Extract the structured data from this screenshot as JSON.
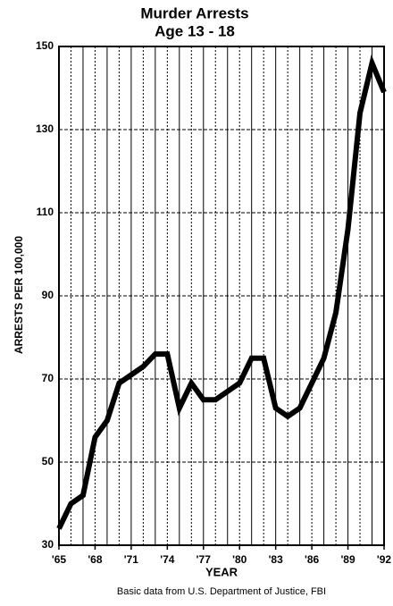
{
  "chart_data": {
    "type": "line",
    "title": "Murder Arrests",
    "subtitle": "Age 13 - 18",
    "x_label": "YEAR",
    "y_label": "ARRESTS PER 100,000",
    "source": "Basic data from U.S. Department of Justice, FBI",
    "x": [
      65,
      66,
      67,
      68,
      69,
      70,
      71,
      72,
      73,
      74,
      75,
      76,
      77,
      78,
      79,
      80,
      81,
      82,
      83,
      84,
      85,
      86,
      87,
      88,
      89,
      90,
      91,
      92
    ],
    "values": [
      34,
      40,
      42,
      56,
      60,
      69,
      71,
      73,
      76,
      76,
      63,
      69,
      65,
      65,
      67,
      69,
      75,
      75,
      63,
      61,
      63,
      69,
      75,
      86,
      106,
      134,
      146,
      139
    ],
    "color": "#000000",
    "xlim": [
      65,
      92
    ],
    "xticks": [
      {
        "value": 65,
        "label": "'65"
      },
      {
        "value": 68,
        "label": "'68"
      },
      {
        "value": 71,
        "label": "'71"
      },
      {
        "value": 74,
        "label": "'74"
      },
      {
        "value": 77,
        "label": "'77"
      },
      {
        "value": 80,
        "label": "'80"
      },
      {
        "value": 83,
        "label": "'83"
      },
      {
        "value": 86,
        "label": "'86"
      },
      {
        "value": 89,
        "label": "'89"
      },
      {
        "value": 92,
        "label": "'92"
      }
    ],
    "ylim": [
      30,
      150
    ],
    "yticks": [
      30,
      50,
      70,
      90,
      110,
      130,
      150
    ],
    "grid": true
  }
}
